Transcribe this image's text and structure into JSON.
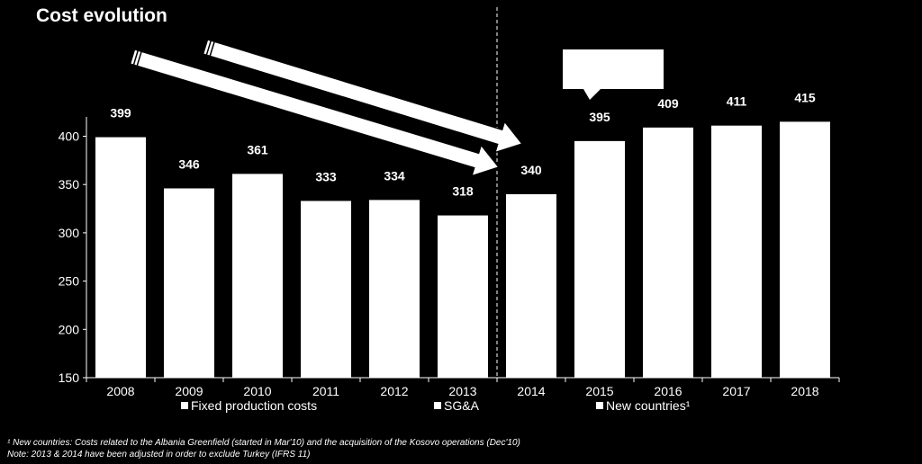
{
  "chart_data": {
    "type": "bar",
    "title": "Cost evolution",
    "categories": [
      "2008",
      "2009",
      "2010",
      "2011",
      "2012",
      "2013",
      "2014",
      "2015",
      "2016",
      "2017",
      "2018"
    ],
    "series": [
      {
        "name": "Fixed production costs",
        "values": [
          399,
          346,
          361,
          333,
          334,
          318,
          340,
          395,
          409,
          411,
          415
        ]
      }
    ],
    "data_labels": [
      "399",
      "346",
      "361",
      "333",
      "334",
      "318",
      "340",
      "395",
      "409",
      "411",
      "415"
    ],
    "legend": [
      "Fixed production costs",
      "SG&A",
      "New countries¹"
    ],
    "legend_position": "bottom",
    "ylim": [
      150,
      420
    ],
    "yticks": [
      150,
      200,
      250,
      300,
      350,
      400
    ],
    "divider_after": "2013",
    "callout_text": "",
    "grid": false,
    "colors": {
      "background": "#000000",
      "bars": "#ffffff",
      "text": "#ffffff"
    }
  },
  "footnotes": {
    "note1": "¹ New countries: Costs related to the Albania Greenfield (started in Mar'10) and the acquisition of the Kosovo operations (Dec'10)",
    "note2": "Note: 2013 & 2014 have been adjusted in order to exclude Turkey (IFRS 11)"
  }
}
